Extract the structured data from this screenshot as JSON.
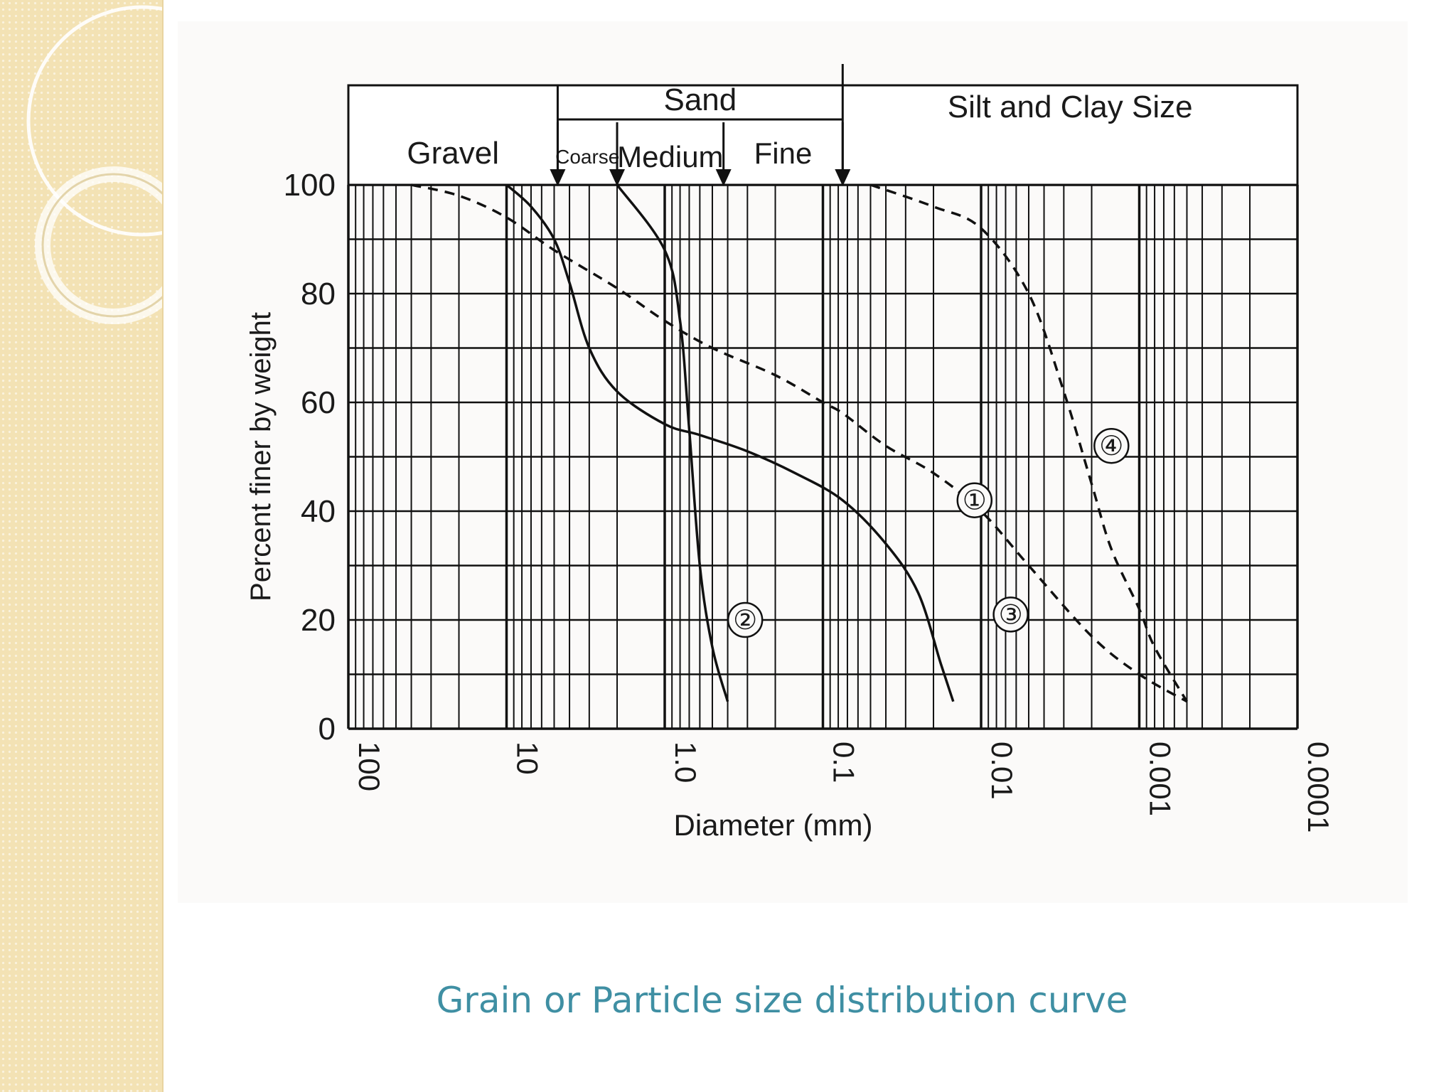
{
  "slide": {
    "caption": "Grain or Particle size distribution curve",
    "accent_color": "#3f8fa3",
    "side_band_color": "#f3e2b4"
  },
  "chart_data": {
    "type": "line",
    "title": "",
    "xlabel": "Diameter (mm)",
    "ylabel": "Percent finer by weight",
    "x_scale": "log",
    "x_direction": "decreasing",
    "xlim": [
      100,
      0.0001
    ],
    "ylim": [
      0,
      100
    ],
    "x_ticks": [
      {
        "value": 100,
        "label": "100"
      },
      {
        "value": 10,
        "label": "10"
      },
      {
        "value": 1,
        "label": "1.0"
      },
      {
        "value": 0.1,
        "label": "0.1"
      },
      {
        "value": 0.01,
        "label": "0.01"
      },
      {
        "value": 0.001,
        "label": "0.001"
      },
      {
        "value": 0.0001,
        "label": "0.0001"
      }
    ],
    "y_ticks": [
      "0",
      "20",
      "40",
      "60",
      "80",
      "100"
    ],
    "grid": true,
    "size_classes": {
      "gravel": "Gravel",
      "sand": "Sand",
      "coarse": "Coarse",
      "medium": "Medium",
      "fine": "Fine",
      "silt_clay": "Silt and Clay Size",
      "boundaries_mm": [
        4.75,
        2.0,
        0.425,
        0.075
      ]
    },
    "series": [
      {
        "label": "①",
        "style": "dashed",
        "label_at": [
          0.011,
          42
        ],
        "points": [
          [
            40,
            100
          ],
          [
            20,
            98
          ],
          [
            10,
            94
          ],
          [
            5,
            88
          ],
          [
            2,
            81
          ],
          [
            1,
            75
          ],
          [
            0.5,
            70
          ],
          [
            0.2,
            65
          ],
          [
            0.1,
            60
          ],
          [
            0.075,
            58
          ],
          [
            0.04,
            52
          ],
          [
            0.02,
            47
          ],
          [
            0.01,
            40
          ],
          [
            0.005,
            30
          ],
          [
            0.002,
            17
          ],
          [
            0.001,
            10
          ],
          [
            0.0005,
            5
          ]
        ]
      },
      {
        "label": "②",
        "style": "solid",
        "label_at": [
          0.31,
          20
        ],
        "points": [
          [
            2.0,
            100
          ],
          [
            1.0,
            88
          ],
          [
            0.8,
            75
          ],
          [
            0.7,
            55
          ],
          [
            0.6,
            30
          ],
          [
            0.5,
            15
          ],
          [
            0.4,
            5
          ]
        ]
      },
      {
        "label": "③",
        "style": "solid",
        "label_at": [
          0.0065,
          21
        ],
        "points": [
          [
            10,
            100
          ],
          [
            7,
            96
          ],
          [
            5,
            90
          ],
          [
            4,
            82
          ],
          [
            3,
            70
          ],
          [
            2,
            62
          ],
          [
            1,
            56
          ],
          [
            0.6,
            54
          ],
          [
            0.3,
            51
          ],
          [
            0.15,
            47
          ],
          [
            0.075,
            42
          ],
          [
            0.04,
            34
          ],
          [
            0.025,
            25
          ],
          [
            0.018,
            12
          ],
          [
            0.015,
            5
          ]
        ]
      },
      {
        "label": "④",
        "style": "dashed",
        "label_at": [
          0.0015,
          52
        ],
        "points": [
          [
            0.05,
            100
          ],
          [
            0.02,
            96
          ],
          [
            0.01,
            92
          ],
          [
            0.005,
            80
          ],
          [
            0.003,
            62
          ],
          [
            0.002,
            45
          ],
          [
            0.0015,
            33
          ],
          [
            0.001,
            22
          ],
          [
            0.0008,
            15
          ],
          [
            0.0005,
            5
          ]
        ]
      }
    ]
  }
}
